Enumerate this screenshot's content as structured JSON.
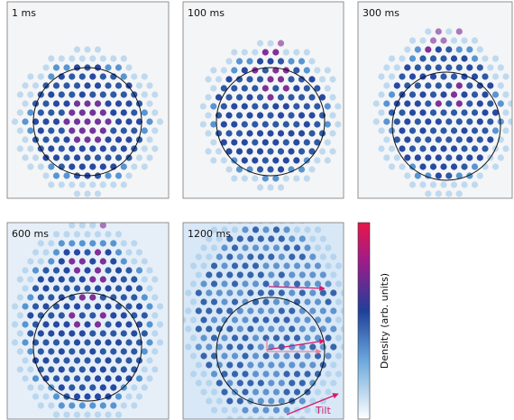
{
  "panels": [
    {
      "label": "1 ms"
    },
    {
      "label": "100 ms"
    },
    {
      "label": "300 ms"
    },
    {
      "label": "600 ms"
    },
    {
      "label": "1200 ms"
    }
  ],
  "colorbar": {
    "label": "Density (arb. units)"
  },
  "annotation": "Tilt"
}
